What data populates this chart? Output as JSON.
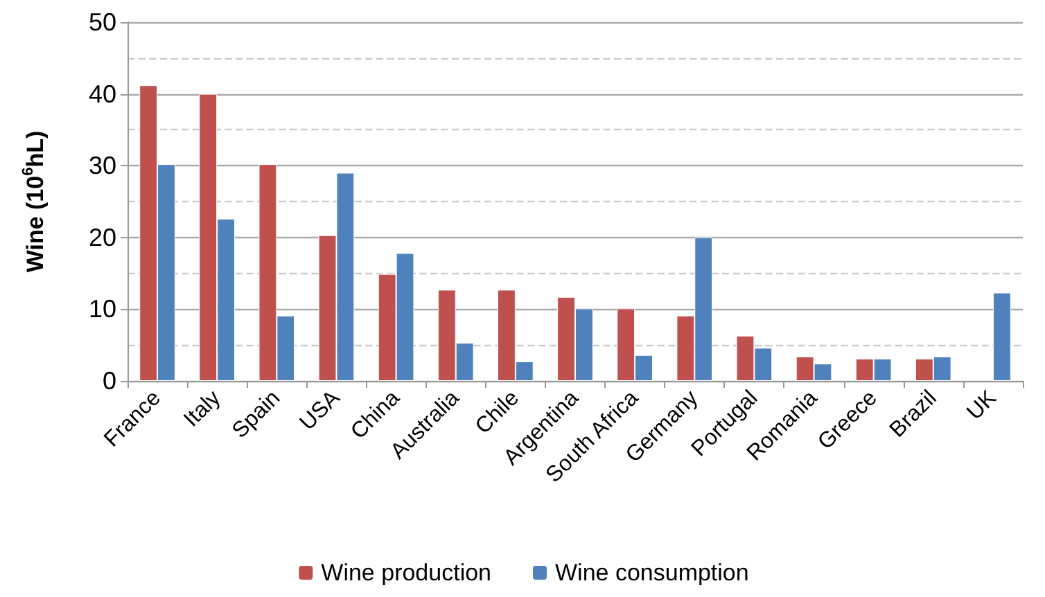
{
  "chart_data": {
    "type": "bar",
    "ylabel": "Wine (10$^{6}$hL)",
    "categories": [
      "France",
      "Italy",
      "Spain",
      "USA",
      "China",
      "Australia",
      "Chile",
      "Argentina",
      "South Africa",
      "Germany",
      "Portugal",
      "Romania",
      "Greece",
      "Brazil",
      "UK"
    ],
    "series": [
      {
        "name": "Wine production",
        "color": "#c0504d",
        "values": [
          41.2,
          40.0,
          30.2,
          20.3,
          14.9,
          12.7,
          12.7,
          11.7,
          10.1,
          9.1,
          6.3,
          3.4,
          3.1,
          3.1,
          null
        ]
      },
      {
        "name": "Wine consumption",
        "color": "#4f81bd",
        "values": [
          30.2,
          22.6,
          9.1,
          29.0,
          17.8,
          5.3,
          2.7,
          10.1,
          3.6,
          20.0,
          4.6,
          2.4,
          3.1,
          3.4,
          12.3
        ]
      }
    ],
    "ylim": [
      0,
      50
    ],
    "yticks": [
      0,
      10,
      20,
      30,
      40,
      50
    ],
    "grid": true,
    "legend": "bottom"
  }
}
